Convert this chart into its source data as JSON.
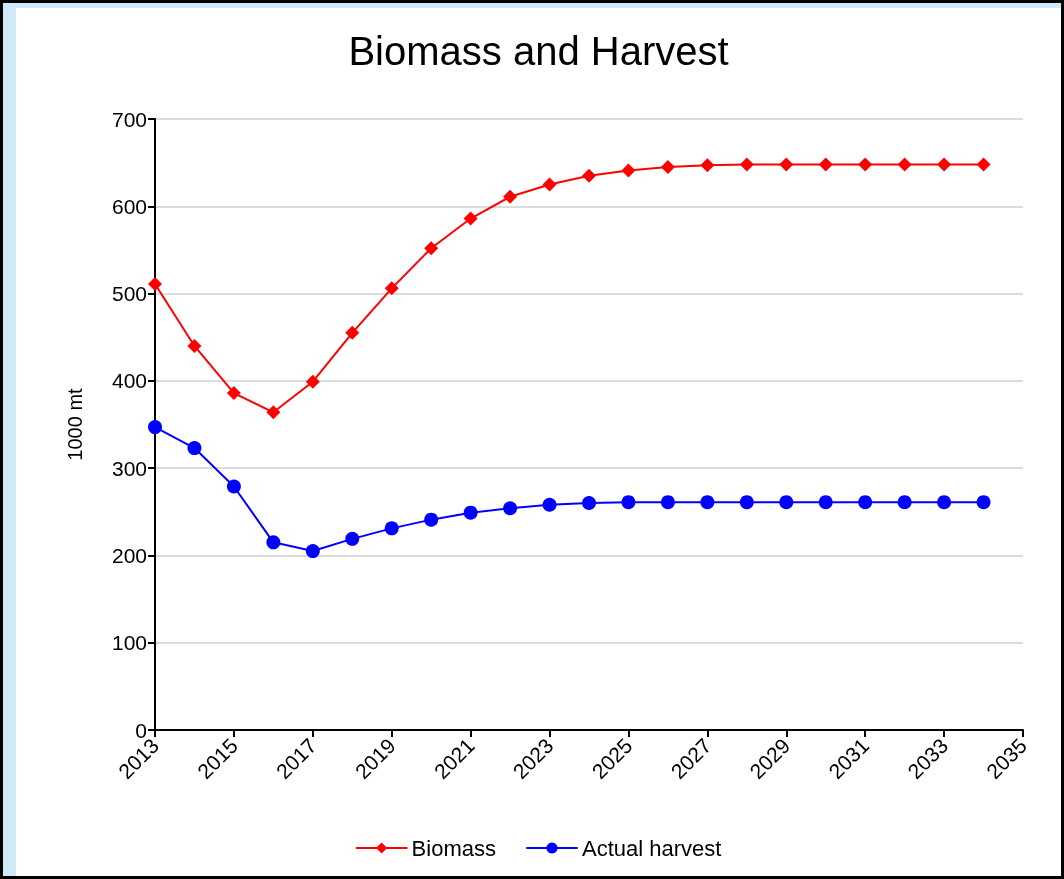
{
  "chart_data": {
    "type": "line",
    "title": "Biomass and Harvest",
    "ylabel": "1000 mt",
    "x": [
      2013,
      2014,
      2015,
      2016,
      2017,
      2018,
      2019,
      2020,
      2021,
      2022,
      2023,
      2024,
      2025,
      2026,
      2027,
      2028,
      2029,
      2030,
      2031,
      2032,
      2033,
      2034
    ],
    "series": [
      {
        "name": "Biomass",
        "color": "#ff0000",
        "marker": "diamond",
        "values": [
          511,
          440,
          386,
          364,
          399,
          455,
          506,
          552,
          586,
          611,
          625,
          635,
          641,
          645,
          647,
          648,
          648,
          648,
          648,
          648,
          648,
          648
        ]
      },
      {
        "name": "Actual harvest",
        "color": "#0000ff",
        "marker": "circle",
        "values": [
          347,
          323,
          279,
          215,
          205,
          219,
          231,
          241,
          249,
          254,
          258,
          260,
          261,
          261,
          261,
          261,
          261,
          261,
          261,
          261,
          261,
          261
        ]
      }
    ],
    "xlim": [
      2013,
      2035
    ],
    "xticks": [
      2013,
      2015,
      2017,
      2019,
      2021,
      2023,
      2025,
      2027,
      2029,
      2031,
      2033,
      2035
    ],
    "ylim": [
      0,
      700
    ],
    "yticks": [
      0,
      100,
      200,
      300,
      400,
      500,
      600,
      700
    ],
    "grid": "y",
    "legend": "bottom",
    "line_style": "solid"
  }
}
